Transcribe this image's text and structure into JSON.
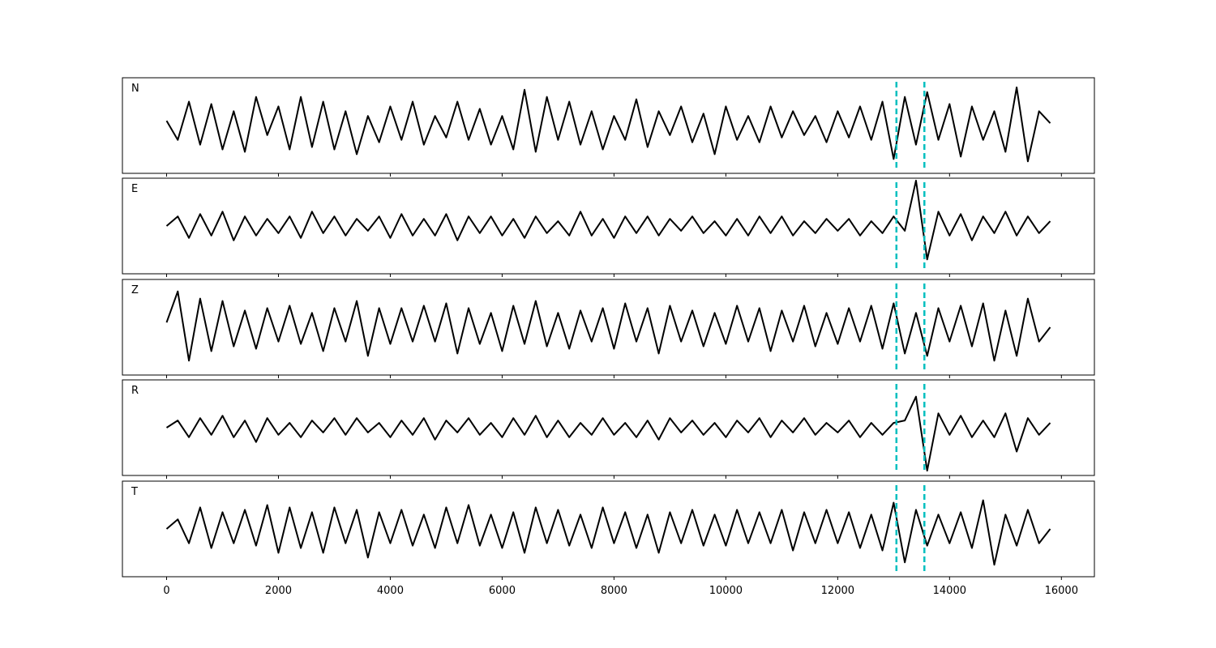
{
  "chart_data": {
    "type": "line",
    "x": [
      0,
      200,
      400,
      600,
      800,
      1000,
      1200,
      1400,
      1600,
      1800,
      2000,
      2200,
      2400,
      2600,
      2800,
      3000,
      3200,
      3400,
      3600,
      3800,
      4000,
      4200,
      4400,
      4600,
      4800,
      5000,
      5200,
      5400,
      5600,
      5800,
      6000,
      6200,
      6400,
      6600,
      6800,
      7000,
      7200,
      7400,
      7600,
      7800,
      8000,
      8200,
      8400,
      8600,
      8800,
      9000,
      9200,
      9400,
      9600,
      9800,
      10000,
      10200,
      10400,
      10600,
      10800,
      11000,
      11200,
      11400,
      11600,
      11800,
      12000,
      12200,
      12400,
      12600,
      12800,
      13000,
      13200,
      13400,
      13600,
      13800,
      14000,
      14200,
      14400,
      14600,
      14800,
      15000,
      15200,
      15400,
      15600,
      15800
    ],
    "series": [
      {
        "name": "N",
        "color": "#000000",
        "values": [
          0.1,
          -0.3,
          0.5,
          -0.4,
          0.45,
          -0.5,
          0.3,
          -0.55,
          0.6,
          -0.2,
          0.4,
          -0.5,
          0.6,
          -0.45,
          0.5,
          -0.5,
          0.3,
          -0.6,
          0.2,
          -0.35,
          0.4,
          -0.3,
          0.5,
          -0.4,
          0.2,
          -0.25,
          0.5,
          -0.3,
          0.35,
          -0.4,
          0.2,
          -0.5,
          0.75,
          -0.55,
          0.6,
          -0.3,
          0.5,
          -0.4,
          0.3,
          -0.5,
          0.2,
          -0.3,
          0.55,
          -0.45,
          0.3,
          -0.2,
          0.4,
          -0.35,
          0.25,
          -0.6,
          0.4,
          -0.3,
          0.2,
          -0.35,
          0.4,
          -0.25,
          0.3,
          -0.2,
          0.2,
          -0.35,
          0.3,
          -0.25,
          0.4,
          -0.3,
          0.5,
          -0.7,
          0.6,
          -0.4,
          0.7,
          -0.3,
          0.45,
          -0.65,
          0.4,
          -0.3,
          0.3,
          -0.55,
          0.8,
          -0.75,
          0.3,
          0.05
        ]
      },
      {
        "name": "E",
        "color": "#000000",
        "values": [
          0.0,
          0.2,
          -0.25,
          0.25,
          -0.2,
          0.3,
          -0.3,
          0.2,
          -0.2,
          0.15,
          -0.15,
          0.2,
          -0.25,
          0.3,
          -0.15,
          0.2,
          -0.2,
          0.15,
          -0.1,
          0.2,
          -0.25,
          0.25,
          -0.2,
          0.15,
          -0.2,
          0.25,
          -0.3,
          0.2,
          -0.15,
          0.2,
          -0.2,
          0.15,
          -0.25,
          0.2,
          -0.15,
          0.1,
          -0.2,
          0.3,
          -0.2,
          0.15,
          -0.25,
          0.2,
          -0.15,
          0.2,
          -0.2,
          0.15,
          -0.1,
          0.2,
          -0.15,
          0.1,
          -0.2,
          0.15,
          -0.2,
          0.2,
          -0.15,
          0.2,
          -0.2,
          0.1,
          -0.15,
          0.15,
          -0.1,
          0.15,
          -0.2,
          0.1,
          -0.15,
          0.2,
          -0.1,
          0.95,
          -0.7,
          0.3,
          -0.2,
          0.25,
          -0.3,
          0.2,
          -0.15,
          0.3,
          -0.2,
          0.2,
          -0.15,
          0.1
        ]
      },
      {
        "name": "Z",
        "color": "#000000",
        "values": [
          0.1,
          0.75,
          -0.7,
          0.6,
          -0.5,
          0.55,
          -0.4,
          0.35,
          -0.45,
          0.4,
          -0.3,
          0.45,
          -0.35,
          0.3,
          -0.5,
          0.4,
          -0.3,
          0.55,
          -0.6,
          0.4,
          -0.35,
          0.4,
          -0.3,
          0.45,
          -0.3,
          0.5,
          -0.55,
          0.4,
          -0.35,
          0.3,
          -0.5,
          0.45,
          -0.35,
          0.55,
          -0.4,
          0.3,
          -0.45,
          0.35,
          -0.3,
          0.4,
          -0.45,
          0.5,
          -0.3,
          0.4,
          -0.55,
          0.45,
          -0.3,
          0.35,
          -0.4,
          0.3,
          -0.35,
          0.45,
          -0.3,
          0.4,
          -0.5,
          0.35,
          -0.3,
          0.45,
          -0.4,
          0.3,
          -0.35,
          0.4,
          -0.3,
          0.45,
          -0.45,
          0.5,
          -0.55,
          0.3,
          -0.6,
          0.4,
          -0.3,
          0.45,
          -0.4,
          0.5,
          -0.7,
          0.35,
          -0.6,
          0.6,
          -0.3,
          0.0
        ]
      },
      {
        "name": "R",
        "color": "#000000",
        "values": [
          0.0,
          0.15,
          -0.2,
          0.2,
          -0.15,
          0.25,
          -0.2,
          0.15,
          -0.3,
          0.2,
          -0.15,
          0.1,
          -0.2,
          0.15,
          -0.1,
          0.2,
          -0.15,
          0.2,
          -0.1,
          0.1,
          -0.2,
          0.15,
          -0.15,
          0.2,
          -0.25,
          0.15,
          -0.1,
          0.2,
          -0.15,
          0.1,
          -0.2,
          0.2,
          -0.15,
          0.25,
          -0.2,
          0.15,
          -0.2,
          0.1,
          -0.15,
          0.2,
          -0.15,
          0.1,
          -0.2,
          0.15,
          -0.25,
          0.2,
          -0.1,
          0.15,
          -0.15,
          0.1,
          -0.2,
          0.15,
          -0.1,
          0.2,
          -0.2,
          0.15,
          -0.1,
          0.2,
          -0.15,
          0.1,
          -0.1,
          0.15,
          -0.2,
          0.1,
          -0.15,
          0.1,
          0.15,
          0.65,
          -0.9,
          0.3,
          -0.15,
          0.25,
          -0.2,
          0.15,
          -0.2,
          0.3,
          -0.5,
          0.2,
          -0.15,
          0.1
        ]
      },
      {
        "name": "T",
        "color": "#000000",
        "values": [
          0.0,
          0.2,
          -0.3,
          0.45,
          -0.4,
          0.35,
          -0.3,
          0.4,
          -0.35,
          0.5,
          -0.5,
          0.45,
          -0.4,
          0.35,
          -0.5,
          0.45,
          -0.3,
          0.4,
          -0.6,
          0.35,
          -0.3,
          0.4,
          -0.35,
          0.3,
          -0.4,
          0.45,
          -0.3,
          0.5,
          -0.35,
          0.3,
          -0.4,
          0.35,
          -0.5,
          0.45,
          -0.3,
          0.4,
          -0.35,
          0.3,
          -0.4,
          0.45,
          -0.3,
          0.35,
          -0.4,
          0.3,
          -0.5,
          0.35,
          -0.3,
          0.4,
          -0.35,
          0.3,
          -0.35,
          0.4,
          -0.3,
          0.35,
          -0.3,
          0.4,
          -0.45,
          0.35,
          -0.3,
          0.4,
          -0.3,
          0.35,
          -0.4,
          0.3,
          -0.45,
          0.55,
          -0.7,
          0.4,
          -0.35,
          0.3,
          -0.3,
          0.35,
          -0.4,
          0.6,
          -0.75,
          0.3,
          -0.35,
          0.4,
          -0.3,
          0.0
        ]
      }
    ],
    "xlim": [
      -790,
      16590
    ],
    "xticks": [
      0,
      2000,
      4000,
      6000,
      8000,
      10000,
      12000,
      14000,
      16000
    ],
    "ylim": [
      -1,
      1
    ],
    "vlines": [
      13050,
      13550
    ],
    "vline_color": "#00bfbf"
  }
}
